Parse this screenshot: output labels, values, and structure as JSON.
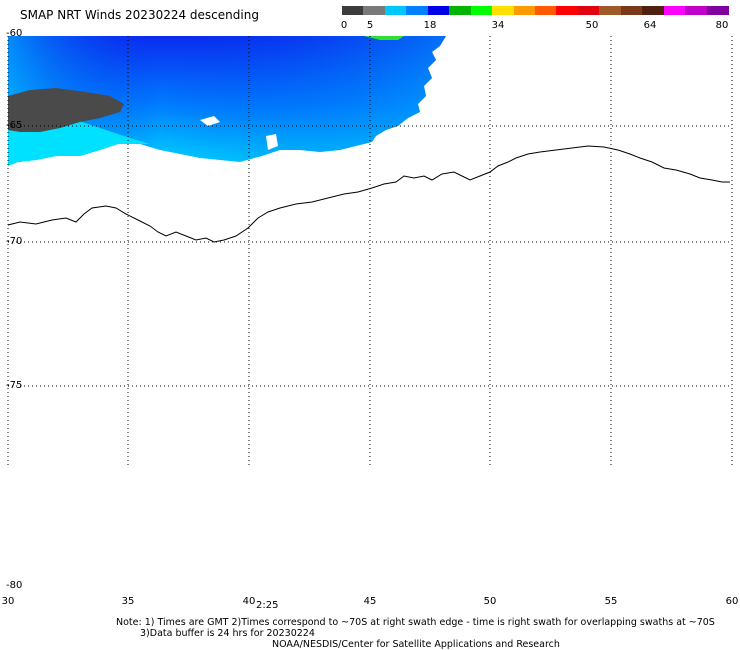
{
  "header": {
    "title": "SMAP NRT Winds  20230224 descending"
  },
  "color_scale": {
    "ticks": [
      "0",
      "5",
      "18",
      "34",
      "50",
      "64",
      "80"
    ],
    "segments": [
      {
        "color": "#3c3c3c"
      },
      {
        "color": "#7a7a7a"
      },
      {
        "color": "#00c8ff"
      },
      {
        "color": "#0080ff"
      },
      {
        "color": "#0000e6"
      },
      {
        "color": "#00b400"
      },
      {
        "color": "#00ff00"
      },
      {
        "color": "#ffe000"
      },
      {
        "color": "#ff9a00"
      },
      {
        "color": "#ff5a00"
      },
      {
        "color": "#ff0000"
      },
      {
        "color": "#e00010"
      },
      {
        "color": "#a05a28"
      },
      {
        "color": "#7a3a1a"
      },
      {
        "color": "#502010"
      },
      {
        "color": "#ff00ff"
      },
      {
        "color": "#c000c8"
      },
      {
        "color": "#8000a0"
      }
    ]
  },
  "map": {
    "lat_labels": [
      "-60",
      "-65",
      "-70",
      "-75",
      "-80"
    ],
    "lon_labels": [
      "30",
      "35",
      "40",
      "45",
      "50",
      "55",
      "60"
    ],
    "time_label": "2:25",
    "swath_colors": {
      "dark": "#4a4a4a",
      "cyan": "#00e6ff",
      "light_blue": "#00a0ff",
      "blue": "#0040ff",
      "deep_blue": "#0010e0",
      "green": "#30e030"
    }
  },
  "footer": {
    "note_line1": "Note: 1) Times are GMT 2)Times correspond to ~70S at right swath edge - time is right swath for overlapping swaths at ~70S",
    "note_line2": "3)Data buffer is 24 hrs for 20230224",
    "credit": "NOAA/NESDIS/Center for Satellite Applications and Research"
  }
}
